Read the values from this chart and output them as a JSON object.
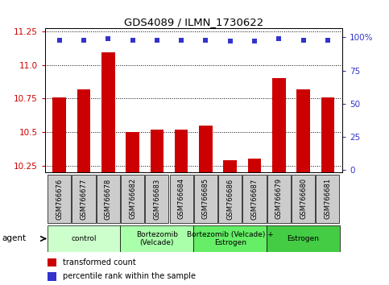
{
  "title": "GDS4089 / ILMN_1730622",
  "samples": [
    "GSM766676",
    "GSM766677",
    "GSM766678",
    "GSM766682",
    "GSM766683",
    "GSM766684",
    "GSM766685",
    "GSM766686",
    "GSM766687",
    "GSM766679",
    "GSM766680",
    "GSM766681"
  ],
  "transformed_count": [
    10.76,
    10.82,
    11.09,
    10.5,
    10.52,
    10.52,
    10.55,
    10.29,
    10.3,
    10.9,
    10.82,
    10.76
  ],
  "percentile_rank": [
    98,
    98,
    99,
    98,
    98,
    98,
    98,
    97,
    97,
    99,
    98,
    98
  ],
  "bar_color": "#cc0000",
  "dot_color": "#3333cc",
  "ylim_left": [
    10.2,
    11.27
  ],
  "ylim_right": [
    -2.0,
    106.7
  ],
  "yticks_left": [
    10.25,
    10.5,
    10.75,
    11.0,
    11.25
  ],
  "yticks_right": [
    0,
    25,
    50,
    75,
    100
  ],
  "groups": [
    {
      "label": "control",
      "start": 0,
      "end": 3,
      "color": "#ccffcc"
    },
    {
      "label": "Bortezomib\n(Velcade)",
      "start": 3,
      "end": 6,
      "color": "#aaffaa"
    },
    {
      "label": "Bortezomib (Velcade) +\nEstrogen",
      "start": 6,
      "end": 9,
      "color": "#66ee66"
    },
    {
      "label": "Estrogen",
      "start": 9,
      "end": 12,
      "color": "#44cc44"
    }
  ],
  "legend_items": [
    {
      "color": "#cc0000",
      "label": "transformed count"
    },
    {
      "color": "#3333cc",
      "label": "percentile rank within the sample"
    }
  ],
  "agent_label": "agent",
  "background_color": "#ffffff",
  "sample_box_color": "#cccccc",
  "grid_color": "#000000"
}
